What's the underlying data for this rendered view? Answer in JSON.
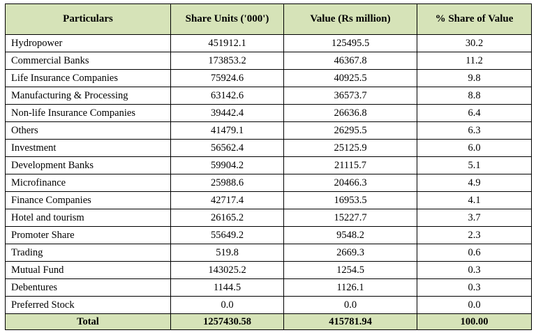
{
  "table": {
    "headers": [
      "Particulars",
      "Share Units ('000')",
      "Value (Rs  million)",
      "% Share of Value"
    ],
    "rows": [
      [
        "Hydropower",
        "451912.1",
        "125495.5",
        "30.2"
      ],
      [
        "Commercial Banks",
        "173853.2",
        "46367.8",
        "11.2"
      ],
      [
        "Life Insurance Companies",
        "75924.6",
        "40925.5",
        "9.8"
      ],
      [
        "Manufacturing & Processing",
        "63142.6",
        "36573.7",
        "8.8"
      ],
      [
        "Non-life Insurance Companies",
        "39442.4",
        "26636.8",
        "6.4"
      ],
      [
        "Others",
        "41479.1",
        "26295.5",
        "6.3"
      ],
      [
        "Investment",
        "56562.4",
        "25125.9",
        "6.0"
      ],
      [
        "Development Banks",
        "59904.2",
        "21115.7",
        "5.1"
      ],
      [
        "Microfinance",
        "25988.6",
        "20466.3",
        "4.9"
      ],
      [
        "Finance Companies",
        "42717.4",
        "16953.5",
        "4.1"
      ],
      [
        "Hotel and tourism",
        "26165.2",
        "15227.7",
        "3.7"
      ],
      [
        "Promoter Share",
        "55649.2",
        "9548.2",
        "2.3"
      ],
      [
        "Trading",
        "519.8",
        "2669.3",
        "0.6"
      ],
      [
        "Mutual Fund",
        "143025.2",
        "1254.5",
        "0.3"
      ],
      [
        "Debentures",
        "1144.5",
        "1126.1",
        "0.3"
      ],
      [
        "Preferred Stock",
        "0.0",
        "0.0",
        "0.0"
      ]
    ],
    "total": [
      "Total",
      "1257430.58",
      "415781.94",
      "100.00"
    ]
  },
  "colors": {
    "header_fill": "#d6e3b8",
    "border": "#000000"
  }
}
